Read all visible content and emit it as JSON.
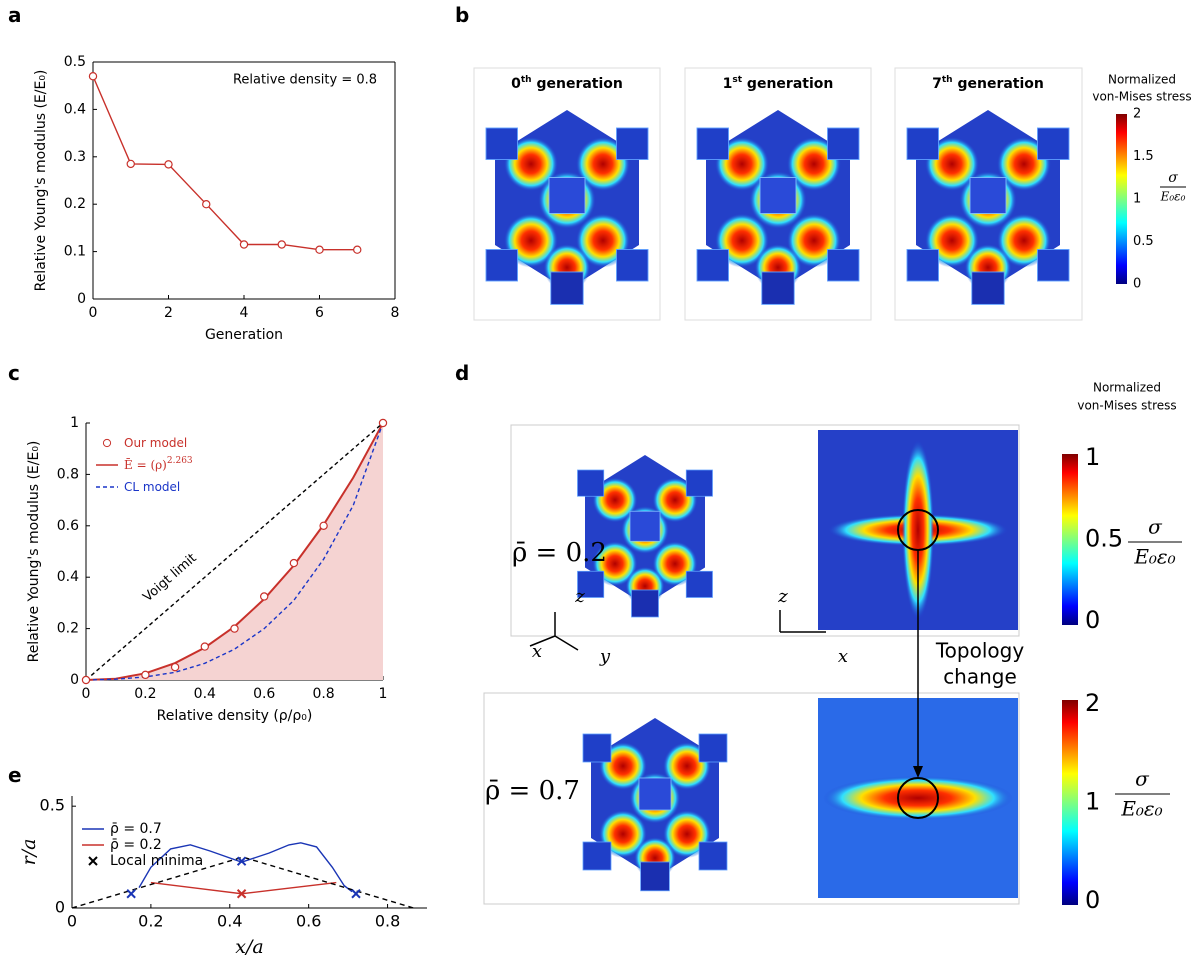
{
  "panel_labels": [
    "a",
    "b",
    "c",
    "d",
    "e"
  ],
  "chart_data": [
    {
      "type": "line",
      "xlabel": "Generation",
      "ylabel": "Relative Young's modulus (E/E₀)",
      "annotation": "Relative density = 0.8",
      "x": [
        0,
        1,
        2,
        3,
        4,
        5,
        6,
        7
      ],
      "series": [
        {
          "color": "#c8312b",
          "marker": "circle",
          "values": [
            0.47,
            0.285,
            0.284,
            0.2,
            0.115,
            0.115,
            0.104,
            0.104
          ]
        }
      ],
      "xlim": [
        0,
        8
      ],
      "xticks": [
        0,
        2,
        4,
        6,
        8
      ],
      "ylim": [
        0,
        0.5
      ],
      "yticks": [
        0,
        0.1,
        0.2,
        0.3,
        0.4,
        0.5
      ],
      "box": true
    },
    {
      "type": "line",
      "xlabel": "Relative density (ρ/ρ₀)",
      "ylabel": "Relative Young's modulus (E/E₀)",
      "annotation": "Voigt limit",
      "series": [
        {
          "name": "Ē = (ρ)",
          "name_sup": "2.263",
          "color": "#c8312b",
          "fill": "#f5d3d2",
          "x": [
            0,
            0.1,
            0.2,
            0.3,
            0.4,
            0.5,
            0.6,
            0.7,
            0.8,
            0.9,
            1
          ],
          "values": [
            0,
            0.005,
            0.026,
            0.066,
            0.126,
            0.208,
            0.315,
            0.446,
            0.604,
            0.788,
            1
          ]
        },
        {
          "name": "CL model",
          "color": "#1a35c8",
          "dash": "4 3",
          "x": [
            0,
            0.1,
            0.2,
            0.3,
            0.4,
            0.5,
            0.6,
            0.7,
            0.8,
            0.9,
            1
          ],
          "values": [
            0,
            0.003,
            0.012,
            0.03,
            0.065,
            0.12,
            0.2,
            0.31,
            0.47,
            0.68,
            1
          ]
        },
        {
          "color": "#000000",
          "dash": "4 3",
          "x": [
            0,
            1
          ],
          "values": [
            0,
            1
          ]
        },
        {
          "name": "Our model",
          "color": "#c8312b",
          "marker": "circle",
          "line": false,
          "x": [
            0,
            0.2,
            0.3,
            0.4,
            0.5,
            0.6,
            0.7,
            0.8,
            1
          ],
          "values": [
            0,
            0.02,
            0.05,
            0.13,
            0.2,
            0.325,
            0.455,
            0.6,
            1
          ]
        }
      ],
      "xlim": [
        0,
        1
      ],
      "xticks": [
        0,
        0.2,
        0.4,
        0.6,
        0.8,
        1
      ],
      "ylim": [
        0,
        1
      ],
      "yticks": [
        0,
        0.2,
        0.4,
        0.6,
        0.8,
        1
      ],
      "box": false
    },
    {
      "type": "line",
      "xlabel": "x/a",
      "ylabel": "r/a",
      "series": [
        {
          "name": "ρ̄ = 0.7",
          "color": "#1a35b5",
          "x": [
            0.17,
            0.2,
            0.25,
            0.3,
            0.35,
            0.43,
            0.5,
            0.55,
            0.58,
            0.62,
            0.66,
            0.69,
            0.71
          ],
          "values": [
            0.1,
            0.2,
            0.29,
            0.31,
            0.28,
            0.225,
            0.27,
            0.31,
            0.32,
            0.3,
            0.2,
            0.11,
            0.08
          ]
        },
        {
          "name": "ρ̄ = 0.2",
          "color": "#c8312b",
          "x": [
            0.2,
            0.43,
            0.67
          ],
          "values": [
            0.125,
            0.07,
            0.125
          ]
        },
        {
          "color": "#000000",
          "dash": "5 4",
          "x": [
            0,
            0.433,
            0.866
          ],
          "values": [
            0,
            0.25,
            0
          ]
        },
        {
          "name": "Local minima",
          "color": "#000000",
          "marker": "x",
          "line": false,
          "colors": [
            "#1a35b5",
            "#1a35b5",
            "#c8312b",
            "#1a35b5"
          ],
          "x": [
            0.15,
            0.43,
            0.43,
            0.72
          ],
          "values": [
            0.07,
            0.23,
            0.07,
            0.07
          ]
        }
      ],
      "xlim": [
        0,
        0.9
      ],
      "xticks": [
        0,
        0.2,
        0.4,
        0.6,
        0.8
      ],
      "ylim": [
        0,
        0.55
      ],
      "yticks": [
        0,
        0.5
      ],
      "box": false
    }
  ],
  "panel_b": {
    "titles": [
      [
        "0",
        "th",
        " generation"
      ],
      [
        "1",
        "st",
        " generation"
      ],
      [
        "7",
        "th",
        " generation"
      ]
    ],
    "colorbar_title": [
      "Normalized",
      "von-Mises stress"
    ],
    "colorbar_ticks": [
      0,
      0.5,
      1,
      1.5,
      2
    ],
    "colorbar_symbol": "σ",
    "colorbar_denominator": "E₀ε₀"
  },
  "panel_d": {
    "rho_labels": [
      "ρ̄ = 0.2",
      "ρ̄ = 0.7"
    ],
    "axis_labels": [
      "z",
      "x",
      "y",
      "z",
      "x"
    ],
    "annotation": [
      "Topology",
      "change"
    ],
    "colorbar_title": [
      "Normalized",
      "von-Mises stress"
    ],
    "colorbar_ticks": [
      [
        0,
        0.5,
        1
      ],
      [
        0,
        1,
        2
      ]
    ],
    "colorbar_symbol": "σ",
    "colorbar_denominator": "E₀ε₀"
  }
}
